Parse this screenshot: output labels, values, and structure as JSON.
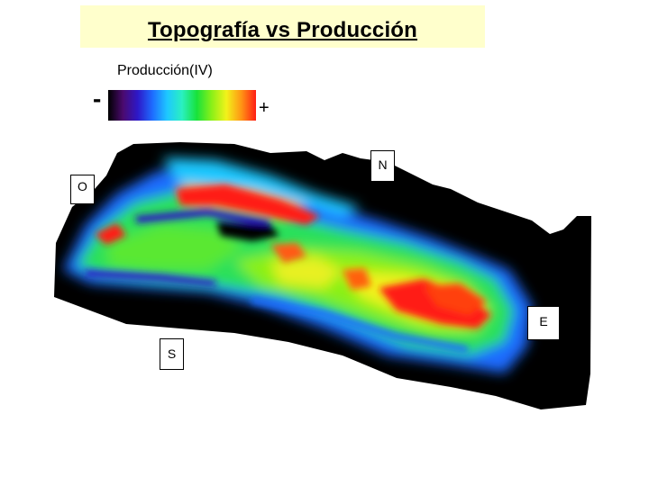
{
  "title": "Topografía vs Producción",
  "legend": {
    "label": "Producción(IV)",
    "min_symbol": "-",
    "max_symbol": "+",
    "colors": [
      "#000000",
      "#4b0a6e",
      "#2d18c8",
      "#1e6cff",
      "#1ec8ff",
      "#2af0c0",
      "#18e23a",
      "#8af018",
      "#f2f21a",
      "#ff9614",
      "#ff1e14"
    ]
  },
  "compass": {
    "north": "N",
    "west": "O",
    "east": "E",
    "south": "S"
  }
}
